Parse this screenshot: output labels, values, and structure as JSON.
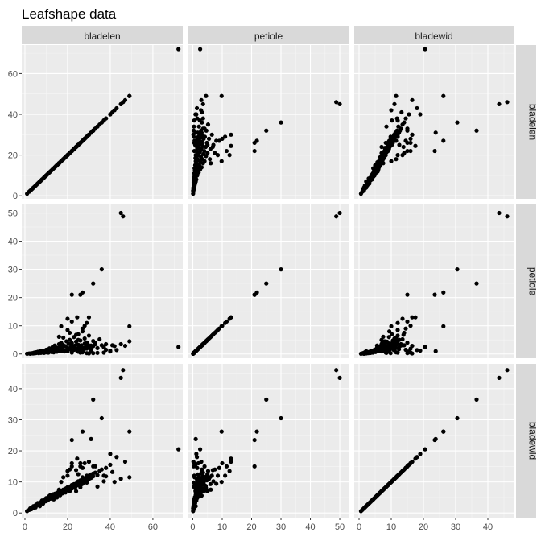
{
  "title": "Leafshape data",
  "chart_data": {
    "type": "scatter",
    "title": "Leafshape data",
    "variables": [
      "bladelen",
      "petiole",
      "bladewid"
    ],
    "axes": {
      "bladelen": {
        "lim": [
          -1.5,
          74
        ],
        "ticks": [
          0,
          20,
          40,
          60
        ],
        "tick_labels": [
          "0",
          "20",
          "40",
          "60"
        ]
      },
      "petiole": {
        "lim": [
          -1.5,
          53
        ],
        "ticks": [
          0,
          10,
          20,
          30,
          40,
          50
        ],
        "tick_labels": [
          "0",
          "10",
          "20",
          "30",
          "40",
          "50"
        ]
      },
      "bladewid": {
        "lim": [
          -1.5,
          48
        ],
        "ticks": [
          0,
          10,
          20,
          30,
          40
        ],
        "tick_labels": [
          "0",
          "10",
          "20",
          "30",
          "40"
        ]
      }
    },
    "grid": true,
    "point_color": "#000000",
    "panel_background": "#EBEBEB",
    "strip_background": "#D9D9D9",
    "points": [
      [
        1,
        0.1,
        0.6
      ],
      [
        2,
        0.2,
        1.0
      ],
      [
        2.5,
        0.1,
        1.5
      ],
      [
        3,
        0.3,
        1.2
      ],
      [
        3.5,
        0.2,
        1.8
      ],
      [
        4,
        0.4,
        1.5
      ],
      [
        4,
        0.2,
        2.2
      ],
      [
        4.5,
        0.5,
        2.0
      ],
      [
        5,
        0.3,
        2.5
      ],
      [
        5,
        0.6,
        1.8
      ],
      [
        5.5,
        0.4,
        2.7
      ],
      [
        6,
        0.5,
        2.5
      ],
      [
        6,
        0.8,
        3.2
      ],
      [
        6.5,
        0.3,
        2.9
      ],
      [
        7,
        0.6,
        3.0
      ],
      [
        7,
        1.0,
        2.2
      ],
      [
        7.5,
        0.4,
        3.5
      ],
      [
        8,
        0.7,
        3.3
      ],
      [
        8,
        1.2,
        4.0
      ],
      [
        8.5,
        0.5,
        3.0
      ],
      [
        9,
        0.9,
        4.2
      ],
      [
        9,
        0.4,
        3.6
      ],
      [
        9.5,
        1.1,
        4.5
      ],
      [
        10,
        0.6,
        3.8
      ],
      [
        10,
        1.5,
        4.8
      ],
      [
        10.5,
        0.8,
        4.1
      ],
      [
        11,
        1.3,
        5.0
      ],
      [
        11,
        0.5,
        4.3
      ],
      [
        11.5,
        2.0,
        5.5
      ],
      [
        12,
        0.9,
        4.6
      ],
      [
        12,
        1.6,
        5.8
      ],
      [
        12.5,
        0.7,
        5.1
      ],
      [
        13,
        2.5,
        6.0
      ],
      [
        13,
        1.1,
        5.3
      ],
      [
        13.5,
        0.6,
        4.4
      ],
      [
        14,
        1.8,
        6.2
      ],
      [
        14,
        3.0,
        5.6
      ],
      [
        14.5,
        1.0,
        5.9
      ],
      [
        15,
        2.2,
        6.5
      ],
      [
        15,
        0.8,
        5.0
      ],
      [
        15.5,
        1.4,
        6.1
      ],
      [
        16,
        3.5,
        7.0
      ],
      [
        16,
        1.2,
        6.4
      ],
      [
        16.5,
        2.6,
        5.7
      ],
      [
        17,
        1.0,
        6.8
      ],
      [
        17,
        4.0,
        7.2
      ],
      [
        17.5,
        2.0,
        6.3
      ],
      [
        18,
        1.5,
        7.5
      ],
      [
        18,
        3.2,
        6.9
      ],
      [
        18.5,
        0.9,
        7.1
      ],
      [
        19,
        2.8,
        7.8
      ],
      [
        19,
        1.3,
        6.6
      ],
      [
        19.5,
        4.5,
        8.0
      ],
      [
        20,
        2.1,
        7.4
      ],
      [
        20,
        1.0,
        8.3
      ],
      [
        20.5,
        3.6,
        7.7
      ],
      [
        21,
        1.8,
        8.1
      ],
      [
        21,
        5.0,
        7.0
      ],
      [
        21.5,
        2.4,
        8.6
      ],
      [
        22,
        1.2,
        7.9
      ],
      [
        22,
        3.9,
        9.0
      ],
      [
        22.5,
        2.7,
        8.4
      ],
      [
        23,
        1.5,
        8.8
      ],
      [
        23,
        6.0,
        9.3
      ],
      [
        23.5,
        3.0,
        8.0
      ],
      [
        24,
        2.0,
        9.5
      ],
      [
        24,
        4.4,
        8.7
      ],
      [
        24.5,
        1.1,
        9.1
      ],
      [
        25,
        3.3,
        9.8
      ],
      [
        25,
        7.0,
        10.2
      ],
      [
        25.5,
        2.5,
        8.9
      ],
      [
        26,
        1.6,
        9.6
      ],
      [
        26,
        4.8,
        10.5
      ],
      [
        26.5,
        3.1,
        9.2
      ],
      [
        27,
        2.2,
        10.0
      ],
      [
        27,
        8.0,
        9.4
      ],
      [
        27.5,
        1.4,
        10.8
      ],
      [
        28,
        3.7,
        9.9
      ],
      [
        28,
        5.5,
        11.0
      ],
      [
        28.5,
        2.6,
        10.3
      ],
      [
        29,
        1.9,
        11.2
      ],
      [
        29,
        4.1,
        10.6
      ],
      [
        29.5,
        3.4,
        11.5
      ],
      [
        30,
        2.3,
        10.9
      ],
      [
        30,
        6.5,
        12.0
      ],
      [
        31,
        3.0,
        11.3
      ],
      [
        31,
        1.7,
        12.4
      ],
      [
        32,
        4.6,
        11.8
      ],
      [
        32,
        2.8,
        12.7
      ],
      [
        33,
        3.5,
        13.0
      ],
      [
        34,
        2.1,
        12.2
      ],
      [
        35,
        5.2,
        13.5
      ],
      [
        36,
        3.1,
        14.0
      ],
      [
        24.5,
        13.0,
        17.5
      ],
      [
        26,
        21.0,
        15.0
      ],
      [
        22,
        11.5,
        15.0
      ],
      [
        20,
        12.5,
        13.5
      ],
      [
        28,
        10.0,
        16.0
      ],
      [
        21,
        7.5,
        14.0
      ],
      [
        30,
        13.0,
        16.5
      ],
      [
        33,
        4.0,
        15.0
      ],
      [
        27,
        9.0,
        14.5
      ],
      [
        25,
        5.0,
        12.5
      ],
      [
        29,
        11.0,
        12.0
      ],
      [
        45,
        3.5,
        11.0
      ],
      [
        49,
        4.5,
        11.5
      ],
      [
        45,
        50.0,
        43.5
      ],
      [
        46,
        48.8,
        46.0
      ],
      [
        72,
        2.5,
        20.5
      ],
      [
        47,
        2.9,
        16.5
      ],
      [
        49,
        9.8,
        26.2
      ],
      [
        36,
        30.0,
        30.5
      ],
      [
        32,
        25.0,
        36.5
      ],
      [
        22,
        21.0,
        23.5
      ],
      [
        27,
        21.8,
        26.2
      ],
      [
        38,
        3.5,
        11.8
      ],
      [
        42,
        2.8,
        10.0
      ],
      [
        41,
        3.1,
        13.2
      ],
      [
        38,
        1.5,
        14.5
      ],
      [
        37,
        0.5,
        12.0
      ],
      [
        31,
        1.0,
        23.8
      ],
      [
        40,
        1.2,
        19.0
      ],
      [
        32,
        0.3,
        15.0
      ],
      [
        22,
        0.5,
        16.0
      ],
      [
        30,
        0.2,
        16.5
      ],
      [
        27,
        0.6,
        11.5
      ],
      [
        25,
        0.8,
        9.0
      ],
      [
        26,
        1.9,
        16.0
      ],
      [
        34,
        0.4,
        8.5
      ],
      [
        37,
        2.4,
        10.2
      ],
      [
        43,
        1.4,
        18.0
      ],
      [
        20,
        8.5,
        12.0
      ],
      [
        24,
        6.8,
        13.8
      ],
      [
        18,
        5.8,
        11.5
      ],
      [
        17,
        9.8,
        10.0
      ],
      [
        16,
        6.1,
        7.5
      ],
      [
        26,
        0.5,
        8.3
      ],
      [
        24,
        1.8,
        7.0
      ],
      [
        29,
        0.3,
        9.8
      ],
      [
        40,
        0.9,
        15.5
      ]
    ]
  }
}
